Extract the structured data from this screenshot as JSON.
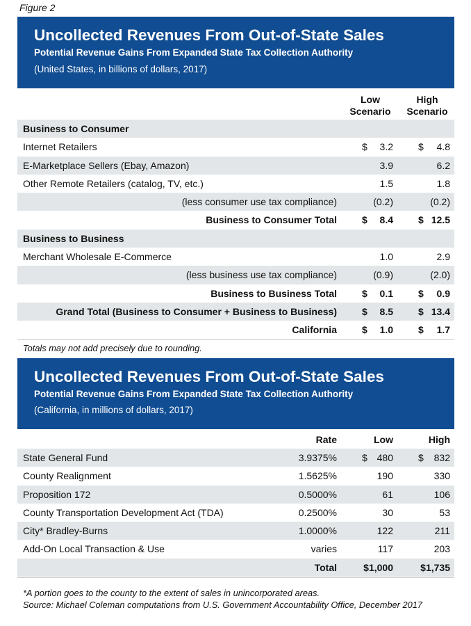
{
  "figure_label": "Figure 2",
  "table1": {
    "title": "Uncollected Revenues From Out-of-State Sales",
    "subtitle": "Potential Revenue Gains From Expanded State Tax Collection Authority",
    "note": "(United States, in billions of dollars, 2017)",
    "col_low_1": "Low",
    "col_low_2": "Scenario",
    "col_high_1": "High",
    "col_high_2": "Scenario",
    "rows": [
      {
        "label": "Business to Consumer",
        "align": "left",
        "bold": true,
        "shade": true,
        "ls": "",
        "low": "",
        "hs": "",
        "high": ""
      },
      {
        "label": "Internet Retailers",
        "align": "left",
        "bold": false,
        "shade": false,
        "ls": "$",
        "low": "3.2",
        "hs": "$",
        "high": "4.8"
      },
      {
        "label": "E-Marketplace Sellers (Ebay, Amazon)",
        "align": "left",
        "bold": false,
        "shade": true,
        "ls": "",
        "low": "3.9",
        "hs": "",
        "high": "6.2"
      },
      {
        "label": "Other Remote Retailers (catalog, TV, etc.)",
        "align": "left",
        "bold": false,
        "shade": false,
        "ls": "",
        "low": "1.5",
        "hs": "",
        "high": "1.8"
      },
      {
        "label": "(less consumer use tax compliance)",
        "align": "right",
        "bold": false,
        "shade": true,
        "ls": "",
        "low": "(0.2)",
        "hs": "",
        "high": "(0.2)"
      },
      {
        "label": "Business to Consumer Total",
        "align": "right",
        "bold": true,
        "shade": false,
        "ls": "$",
        "low": "8.4",
        "hs": "$",
        "high": "12.5"
      },
      {
        "label": "Business to Business",
        "align": "left",
        "bold": true,
        "shade": true,
        "ls": "",
        "low": "",
        "hs": "",
        "high": ""
      },
      {
        "label": "Merchant Wholesale E-Commerce",
        "align": "left",
        "bold": false,
        "shade": false,
        "ls": "",
        "low": "1.0",
        "hs": "",
        "high": "2.9"
      },
      {
        "label": "(less business use tax compliance)",
        "align": "right",
        "bold": false,
        "shade": true,
        "ls": "",
        "low": "(0.9)",
        "hs": "",
        "high": "(2.0)"
      },
      {
        "label": "Business to Business Total",
        "align": "right",
        "bold": true,
        "shade": false,
        "ls": "$",
        "low": "0.1",
        "hs": "$",
        "high": "0.9"
      },
      {
        "label": "Grand Total (Business to Consumer + Business to Business)",
        "align": "right",
        "bold": true,
        "shade": true,
        "ls": "$",
        "low": "8.5",
        "hs": "$",
        "high": "13.4"
      },
      {
        "label": "California",
        "align": "right",
        "bold": true,
        "shade": false,
        "ls": "$",
        "low": "1.0",
        "hs": "$",
        "high": "1.7"
      }
    ],
    "footnote": "Totals may not add precisely due to rounding."
  },
  "table2": {
    "title": "Uncollected Revenues From Out-of-State Sales",
    "subtitle": "Potential Revenue Gains From Expanded State Tax Collection Authority",
    "note": "(California, in millions of dollars, 2017)",
    "col_rate": "Rate",
    "col_low": "Low",
    "col_high": "High",
    "rows": [
      {
        "label": "State General Fund",
        "bold": false,
        "shade": true,
        "rate": "3.9375%",
        "ls": "$",
        "low": "480",
        "hs": "$",
        "high": "832"
      },
      {
        "label": "County Realignment",
        "bold": false,
        "shade": false,
        "rate": "1.5625%",
        "ls": "",
        "low": "190",
        "hs": "",
        "high": "330"
      },
      {
        "label": "Proposition 172",
        "bold": false,
        "shade": true,
        "rate": "0.5000%",
        "ls": "",
        "low": "61",
        "hs": "",
        "high": "106"
      },
      {
        "label": "County Transportation Development Act (TDA)",
        "bold": false,
        "shade": false,
        "rate": "0.2500%",
        "ls": "",
        "low": "30",
        "hs": "",
        "high": "53"
      },
      {
        "label": "City* Bradley-Burns",
        "bold": false,
        "shade": true,
        "rate": "1.0000%",
        "ls": "",
        "low": "122",
        "hs": "",
        "high": "211"
      },
      {
        "label": "Add-On Local Transaction & Use",
        "bold": false,
        "shade": false,
        "rate": "varies",
        "ls": "",
        "low": "117",
        "hs": "",
        "high": "203"
      }
    ],
    "total_label": "Total",
    "total_low": "$1,000",
    "total_high": "$1,735",
    "footnote1": "*A portion goes to the county to the extent of sales in unincorporated areas.",
    "footnote2": "Source: Michael Coleman computations from U.S. Government Accountability Office, December 2017"
  }
}
